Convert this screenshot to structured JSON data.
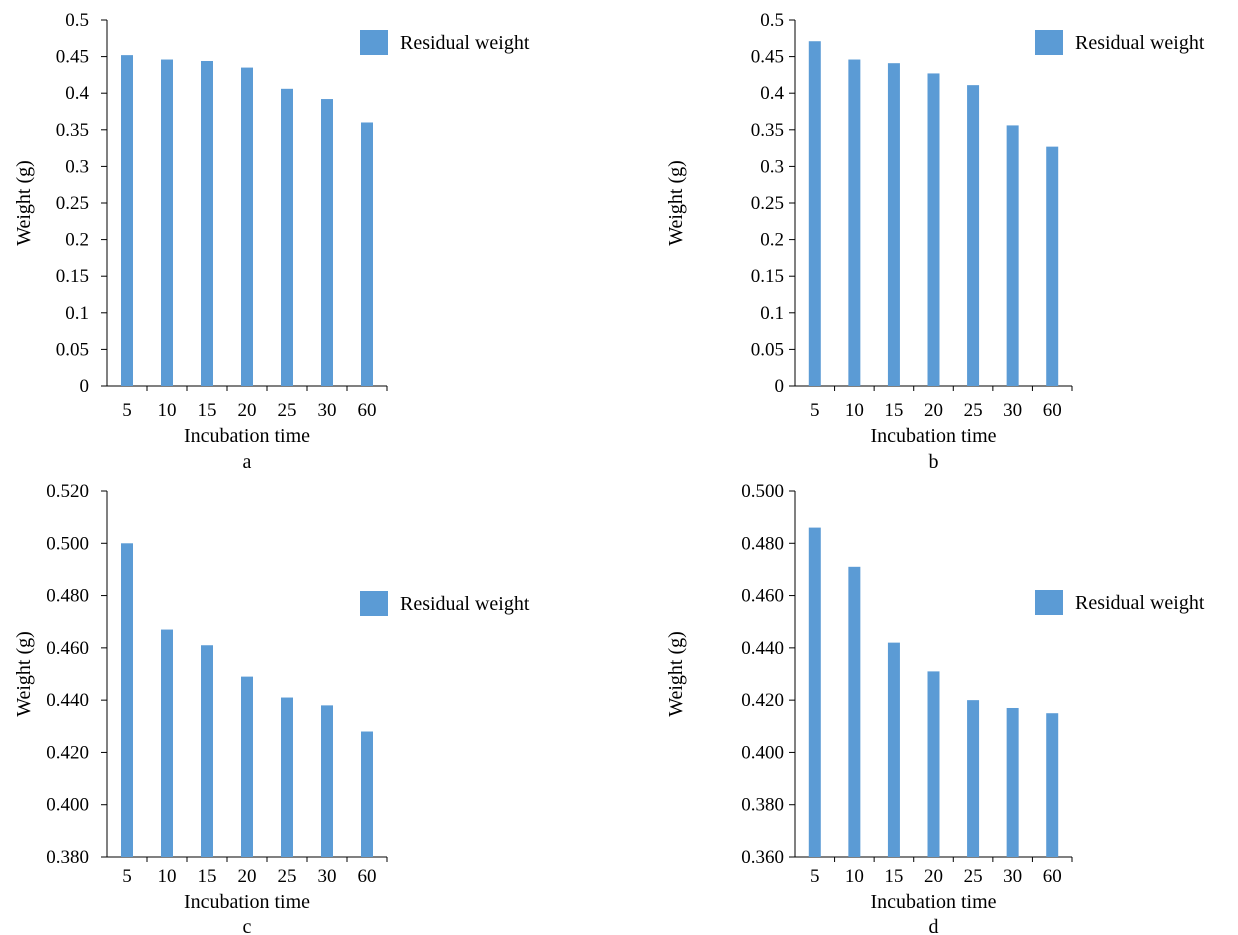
{
  "chart_data": [
    {
      "type": "bar",
      "panel_label": "a",
      "categories": [
        "5",
        "10",
        "15",
        "20",
        "25",
        "30",
        "60"
      ],
      "series": [
        {
          "name": "Residual weight",
          "color": "#5B9BD5",
          "values": [
            0.452,
            0.446,
            0.444,
            0.435,
            0.406,
            0.392,
            0.36
          ]
        }
      ],
      "xlabel": "Incubation time",
      "ylabel": "Weight (g)",
      "ylim": [
        0,
        0.5
      ],
      "yticks": [
        "0",
        "0.05",
        "0.1",
        "0.15",
        "0.2",
        "0.25",
        "0.3",
        "0.35",
        "0.4",
        "0.45",
        "0.5"
      ],
      "grid": false,
      "legend": "top-right"
    },
    {
      "type": "bar",
      "panel_label": "b",
      "categories": [
        "5",
        "10",
        "15",
        "20",
        "25",
        "30",
        "60"
      ],
      "series": [
        {
          "name": "Residual weight",
          "color": "#5B9BD5",
          "values": [
            0.471,
            0.446,
            0.441,
            0.427,
            0.411,
            0.356,
            0.327
          ]
        }
      ],
      "xlabel": "Incubation time",
      "ylabel": "Weight (g)",
      "ylim": [
        0,
        0.5
      ],
      "yticks": [
        "0",
        "0.05",
        "0.1",
        "0.15",
        "0.2",
        "0.25",
        "0.3",
        "0.35",
        "0.4",
        "0.45",
        "0.5"
      ],
      "grid": false,
      "legend": "top-right"
    },
    {
      "type": "bar",
      "panel_label": "c",
      "categories": [
        "5",
        "10",
        "15",
        "20",
        "25",
        "30",
        "60"
      ],
      "series": [
        {
          "name": "Residual weight",
          "color": "#5B9BD5",
          "values": [
            0.5,
            0.467,
            0.461,
            0.449,
            0.441,
            0.438,
            0.428
          ]
        }
      ],
      "xlabel": "Incubation time",
      "ylabel": "Weight (g)",
      "ylim": [
        0.38,
        0.52
      ],
      "yticks": [
        "0.380",
        "0.400",
        "0.420",
        "0.440",
        "0.460",
        "0.480",
        "0.500",
        "0.520"
      ],
      "grid": false,
      "legend": "right"
    },
    {
      "type": "bar",
      "panel_label": "d",
      "categories": [
        "5",
        "10",
        "15",
        "20",
        "25",
        "30",
        "60"
      ],
      "series": [
        {
          "name": "Residual weight",
          "color": "#5B9BD5",
          "values": [
            0.486,
            0.471,
            0.442,
            0.431,
            0.42,
            0.417,
            0.415
          ]
        }
      ],
      "xlabel": "Incubation time",
      "ylabel": "Weight (g)",
      "ylim": [
        0.36,
        0.5
      ],
      "yticks": [
        "0.360",
        "0.380",
        "0.400",
        "0.420",
        "0.440",
        "0.460",
        "0.480",
        "0.500"
      ],
      "grid": false,
      "legend": "right"
    }
  ]
}
